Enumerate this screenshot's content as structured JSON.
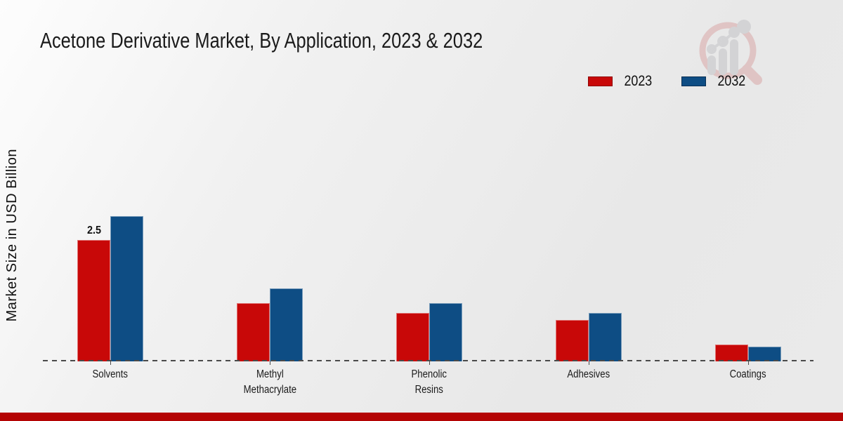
{
  "page": {
    "title": "Acetone Derivative Market, By Application, 2023 & 2032",
    "footer_accent_color": "#b40404",
    "background_color": "#eaeaea",
    "baseline_color": "#4a4a4a"
  },
  "legend": {
    "position": "top-right",
    "items": [
      {
        "label": "2023",
        "color": "#c80808",
        "border": "#8f0505"
      },
      {
        "label": "2032",
        "color": "#0e4d84",
        "border": "#093055"
      }
    ]
  },
  "watermark": {
    "icon": "magnifier-bar-chart-logo",
    "ring_color": "#d9a8a8",
    "bars_color": "#c3c3c7"
  },
  "chart_data": {
    "type": "bar",
    "title": "Acetone Derivative Market, By Application, 2023 & 2032",
    "xlabel": "",
    "ylabel": "Market Size in USD Billion",
    "categories": [
      "Solvents",
      "Methyl\nMethacrylate",
      "Phenolic\nResins",
      "Adhesives",
      "Coatings"
    ],
    "series": [
      {
        "name": "2023",
        "color": "#c80808",
        "values": [
          2.5,
          1.2,
          1.0,
          0.85,
          0.35
        ]
      },
      {
        "name": "2032",
        "color": "#0e4d84",
        "values": [
          3.0,
          1.5,
          1.2,
          1.0,
          0.3
        ]
      }
    ],
    "data_labels": [
      {
        "series_index": 0,
        "category_index": 0,
        "text": "2.5"
      }
    ],
    "ylim": [
      0,
      3.6
    ],
    "grid": false,
    "y_axis_ticks": "hidden",
    "baseline_style": "dashed",
    "legend_position": "top-right"
  }
}
